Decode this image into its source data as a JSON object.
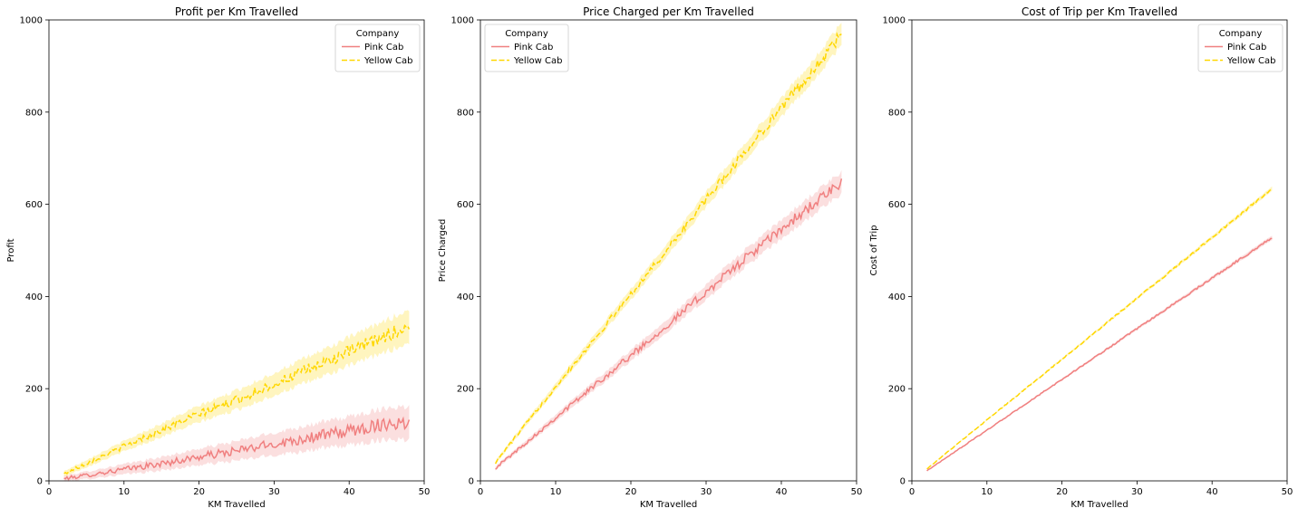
{
  "chart_data": [
    {
      "type": "line",
      "title": "Profit per Km Travelled",
      "xlabel": "KM Travelled",
      "ylabel": "Profit",
      "xlim": [
        0,
        50
      ],
      "ylim": [
        0,
        1000
      ],
      "xticks": [
        "0",
        "10",
        "20",
        "30",
        "40",
        "50"
      ],
      "yticks": [
        "0",
        "200",
        "400",
        "600",
        "800",
        "1000"
      ],
      "legend_title": "Company",
      "legend_position": "top-right",
      "series": [
        {
          "name": "Pink Cab",
          "color": "#f08080",
          "dash": "solid",
          "x": [
            2,
            5,
            10,
            15,
            20,
            25,
            30,
            35,
            40,
            45,
            48
          ],
          "y": [
            5,
            12,
            25,
            37,
            52,
            65,
            80,
            95,
            108,
            125,
            125
          ]
        },
        {
          "name": "Yellow Cab",
          "color": "#ffd700",
          "dash": "dashed",
          "x": [
            2,
            5,
            10,
            15,
            20,
            25,
            30,
            35,
            40,
            45,
            48
          ],
          "y": [
            15,
            38,
            75,
            110,
            145,
            175,
            210,
            245,
            280,
            315,
            335
          ]
        }
      ]
    },
    {
      "type": "line",
      "title": "Price Charged per Km Travelled",
      "xlabel": "KM Travelled",
      "ylabel": "Price Charged",
      "xlim": [
        0,
        50
      ],
      "ylim": [
        0,
        1000
      ],
      "xticks": [
        "0",
        "10",
        "20",
        "30",
        "40",
        "50"
      ],
      "yticks": [
        "0",
        "200",
        "400",
        "600",
        "800",
        "1000"
      ],
      "legend_title": "Company",
      "legend_position": "top-left",
      "series": [
        {
          "name": "Pink Cab",
          "color": "#f08080",
          "dash": "solid",
          "x": [
            2,
            5,
            10,
            15,
            20,
            25,
            30,
            35,
            40,
            45,
            48
          ],
          "y": [
            28,
            68,
            137,
            205,
            272,
            340,
            410,
            480,
            545,
            610,
            645
          ]
        },
        {
          "name": "Yellow Cab",
          "color": "#ffd700",
          "dash": "dashed",
          "x": [
            2,
            5,
            10,
            15,
            20,
            25,
            30,
            35,
            40,
            45,
            48
          ],
          "y": [
            40,
            102,
            205,
            305,
            405,
            505,
            610,
            710,
            810,
            905,
            970
          ]
        }
      ]
    },
    {
      "type": "line",
      "title": "Cost of Trip per Km Travelled",
      "xlabel": "KM Travelled",
      "ylabel": "Cost of Trip",
      "xlim": [
        0,
        50
      ],
      "ylim": [
        0,
        1000
      ],
      "xticks": [
        "0",
        "10",
        "20",
        "30",
        "40",
        "50"
      ],
      "yticks": [
        "0",
        "200",
        "400",
        "600",
        "800",
        "1000"
      ],
      "legend_title": "Company",
      "legend_position": "top-right",
      "series": [
        {
          "name": "Pink Cab",
          "color": "#f08080",
          "dash": "solid",
          "x": [
            2,
            5,
            10,
            15,
            20,
            25,
            30,
            35,
            40,
            45,
            48
          ],
          "y": [
            22,
            55,
            110,
            165,
            220,
            275,
            330,
            385,
            440,
            495,
            528
          ]
        },
        {
          "name": "Yellow Cab",
          "color": "#ffd700",
          "dash": "dashed",
          "x": [
            2,
            5,
            10,
            15,
            20,
            25,
            30,
            35,
            40,
            45,
            48
          ],
          "y": [
            26,
            66,
            132,
            198,
            264,
            330,
            396,
            462,
            528,
            594,
            634
          ]
        }
      ]
    }
  ]
}
